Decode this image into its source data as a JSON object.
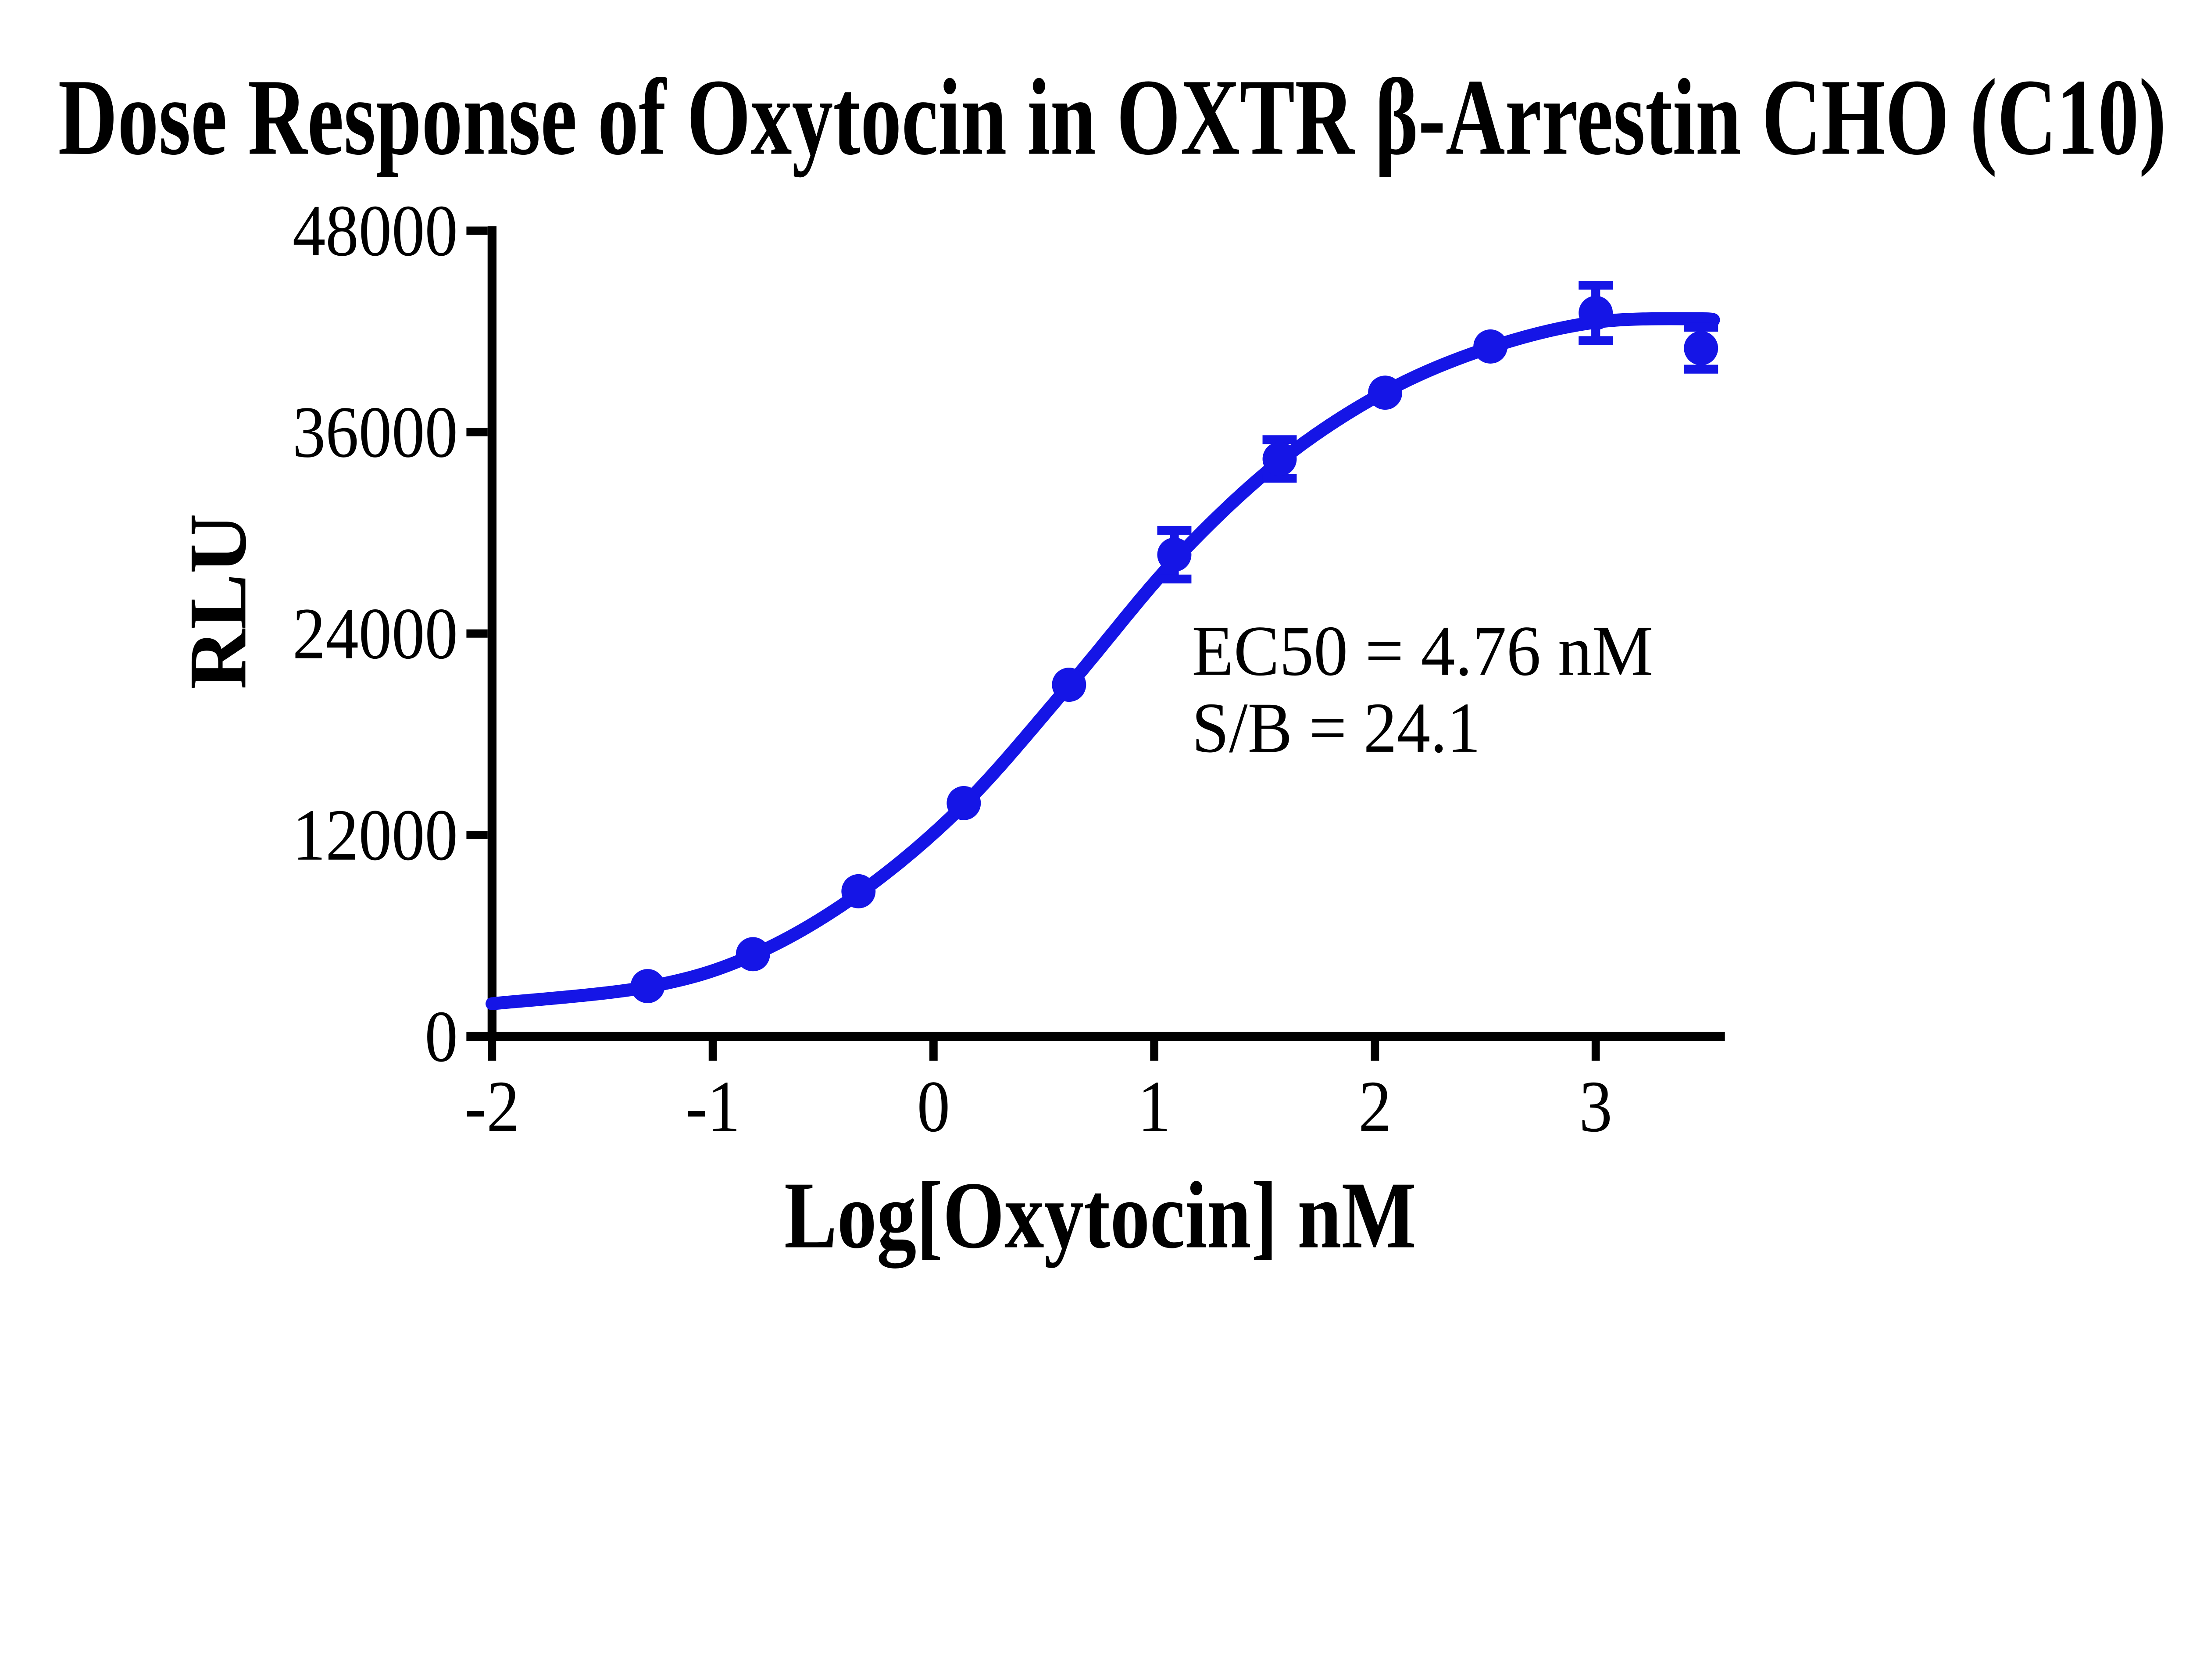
{
  "chart_data": {
    "type": "scatter",
    "title": "Dose Response of Oxytocin in OXTR β-Arrestin CHO (C10)",
    "xlabel": "Log[Oxytocin] nM",
    "ylabel": "RLU",
    "xlim": [
      -2,
      3.58
    ],
    "ylim": [
      0,
      48000
    ],
    "xticks": [
      -2,
      -1,
      0,
      1,
      2,
      3
    ],
    "yticks": [
      0,
      12000,
      24000,
      36000,
      48000
    ],
    "grid": false,
    "legend": null,
    "annotations": [
      "EC50 = 4.76 nM",
      "S/B = 24.1"
    ],
    "colors": {
      "curve": "#1515e6",
      "marker": "#1515e6",
      "axis": "#000000",
      "text": "#000000",
      "background": "#ffffff"
    },
    "series": [
      {
        "name": "Oxytocin",
        "points": [
          {
            "log_x": -1.295,
            "conc_nM": 0.051,
            "rlu": 3000,
            "err": 0
          },
          {
            "log_x": -0.818,
            "conc_nM": 0.152,
            "rlu": 4900,
            "err": 0
          },
          {
            "log_x": -0.34,
            "conc_nM": 0.457,
            "rlu": 8650,
            "err": 0
          },
          {
            "log_x": 0.137,
            "conc_nM": 1.37,
            "rlu": 13900,
            "err": 0
          },
          {
            "log_x": 0.614,
            "conc_nM": 4.12,
            "rlu": 20950,
            "err": 0
          },
          {
            "log_x": 1.091,
            "conc_nM": 12.3,
            "rlu": 28700,
            "err": 1450
          },
          {
            "log_x": 1.568,
            "conc_nM": 37.0,
            "rlu": 34400,
            "err": 1150
          },
          {
            "log_x": 2.046,
            "conc_nM": 111.1,
            "rlu": 38350,
            "err": 0
          },
          {
            "log_x": 2.523,
            "conc_nM": 333.3,
            "rlu": 41100,
            "err": 0
          },
          {
            "log_x": 3.0,
            "conc_nM": 1000,
            "rlu": 43100,
            "err": 1650
          },
          {
            "log_x": 3.477,
            "conc_nM": 3000,
            "rlu": 41000,
            "err": 1250
          }
        ]
      }
    ],
    "fit": {
      "model": "four-parameter logistic (sigmoidal dose-response)",
      "ec50_nM": 4.76,
      "s_over_b": 24.1,
      "curve_x": [
        -2.0,
        -1.295,
        -0.818,
        -0.34,
        0.137,
        0.614,
        1.091,
        1.568,
        2.046,
        2.523,
        3.0,
        3.477,
        3.53
      ],
      "curve_y": [
        1950,
        2950,
        4850,
        8500,
        13800,
        20900,
        28350,
        34250,
        38400,
        41050,
        42550,
        42750,
        42600
      ]
    }
  }
}
